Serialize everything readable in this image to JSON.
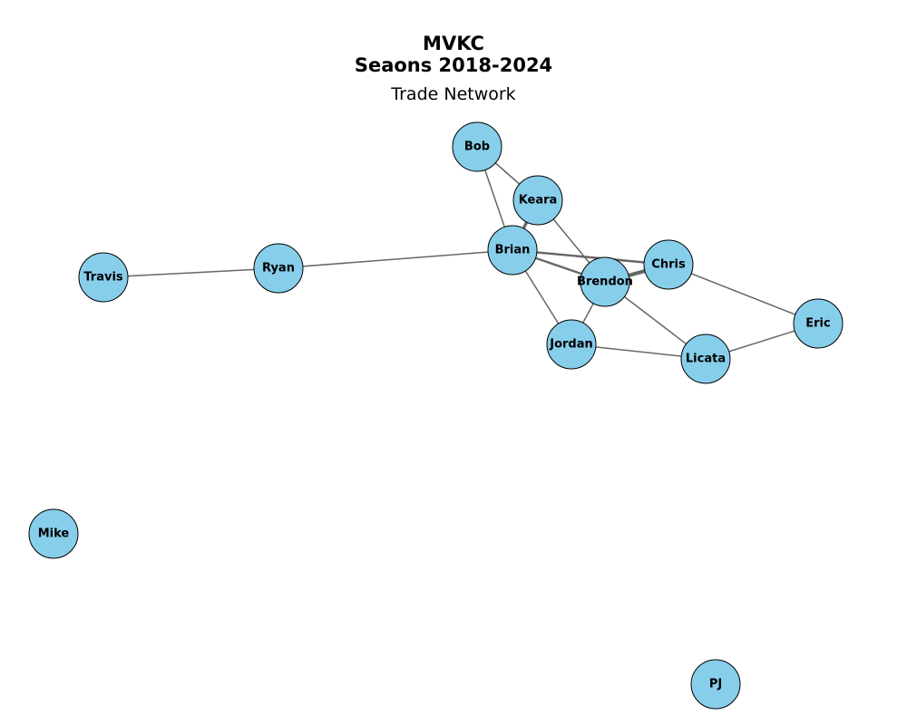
{
  "figure": {
    "title_line1": "MVKC",
    "title_line2": "Seaons 2018-2024",
    "subtitle": "Trade Network"
  },
  "colors": {
    "node_fill": "#87CEEB",
    "node_stroke": "#000000",
    "edge": "#666666",
    "label": "#000000"
  },
  "nodes": [
    {
      "id": "Bob",
      "label": "Bob"
    },
    {
      "id": "Keara",
      "label": "Keara"
    },
    {
      "id": "Brian",
      "label": "Brian"
    },
    {
      "id": "Chris",
      "label": "Chris"
    },
    {
      "id": "Brendon",
      "label": "Brendon"
    },
    {
      "id": "Jordan",
      "label": "Jordan"
    },
    {
      "id": "Licata",
      "label": "Licata"
    },
    {
      "id": "Eric",
      "label": "Eric"
    },
    {
      "id": "Ryan",
      "label": "Ryan"
    },
    {
      "id": "Travis",
      "label": "Travis"
    },
    {
      "id": "Mike",
      "label": "Mike"
    },
    {
      "id": "PJ",
      "label": "PJ"
    }
  ],
  "edges": [
    {
      "source": "Bob",
      "target": "Keara",
      "weight": 1
    },
    {
      "source": "Bob",
      "target": "Brian",
      "weight": 1
    },
    {
      "source": "Keara",
      "target": "Brian",
      "weight": 3
    },
    {
      "source": "Keara",
      "target": "Brendon",
      "weight": 1
    },
    {
      "source": "Brian",
      "target": "Ryan",
      "weight": 1
    },
    {
      "source": "Brian",
      "target": "Chris",
      "weight": 2
    },
    {
      "source": "Brian",
      "target": "Brendon",
      "weight": 2
    },
    {
      "source": "Brian",
      "target": "Jordan",
      "weight": 1
    },
    {
      "source": "Brendon",
      "target": "Chris",
      "weight": 4
    },
    {
      "source": "Brendon",
      "target": "Jordan",
      "weight": 1
    },
    {
      "source": "Brendon",
      "target": "Licata",
      "weight": 1
    },
    {
      "source": "Chris",
      "target": "Eric",
      "weight": 1
    },
    {
      "source": "Jordan",
      "target": "Licata",
      "weight": 1
    },
    {
      "source": "Licata",
      "target": "Eric",
      "weight": 1
    },
    {
      "source": "Ryan",
      "target": "Travis",
      "weight": 1
    }
  ]
}
